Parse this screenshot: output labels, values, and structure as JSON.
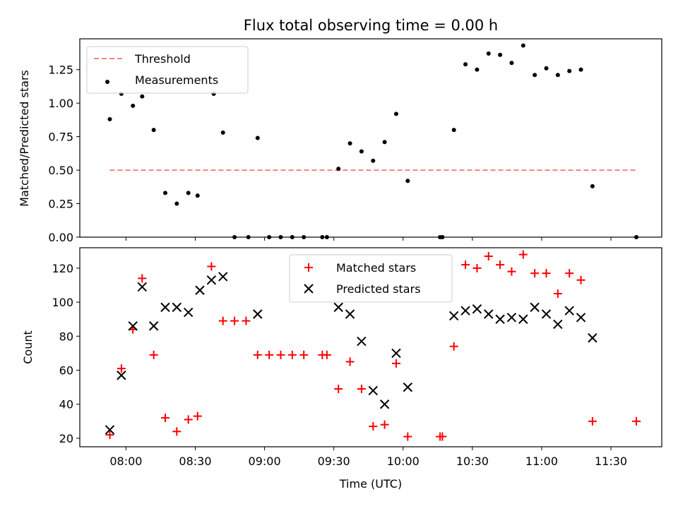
{
  "figure": {
    "title": "Flux total observing time = 0.00 h",
    "xlabel": "Time (UTC)",
    "x_tick_labels": [
      "08:00",
      "08:30",
      "09:00",
      "09:30",
      "10:00",
      "10:30",
      "11:00",
      "11:30"
    ]
  },
  "chart_data": [
    {
      "type": "scatter",
      "ylabel": "Matched/Predicted stars",
      "ylim": [
        0,
        1.48
      ],
      "xlim": [
        "07:40",
        "11:52"
      ],
      "y_ticks": [
        0.0,
        0.25,
        0.5,
        0.75,
        1.0,
        1.25
      ],
      "y_tick_labels": [
        "0.00",
        "0.25",
        "0.50",
        "0.75",
        "1.00",
        "1.25"
      ],
      "x_tick_labels_shown": false,
      "legend_position": "upper left",
      "colors": {
        "threshold": "#ff7f7f",
        "measurements": "#000000"
      },
      "threshold": {
        "name": "Threshold",
        "value": 0.5,
        "x_range": [
          "07:53",
          "11:41"
        ]
      },
      "measurements": {
        "name": "Measurements",
        "points": [
          [
            "07:53",
            0.88
          ],
          [
            "07:58",
            1.07
          ],
          [
            "08:03",
            0.98
          ],
          [
            "08:07",
            1.05
          ],
          [
            "08:12",
            0.8
          ],
          [
            "08:17",
            0.33
          ],
          [
            "08:22",
            0.25
          ],
          [
            "08:27",
            0.33
          ],
          [
            "08:31",
            0.31
          ],
          [
            "08:38",
            1.07
          ],
          [
            "08:42",
            0.78
          ],
          [
            "08:47",
            0.0
          ],
          [
            "08:53",
            0.0
          ],
          [
            "08:57",
            0.74
          ],
          [
            "09:02",
            0.0
          ],
          [
            "09:07",
            0.0
          ],
          [
            "09:12",
            0.0
          ],
          [
            "09:17",
            0.0
          ],
          [
            "09:25",
            0.0
          ],
          [
            "09:27",
            0.0
          ],
          [
            "09:32",
            0.51
          ],
          [
            "09:37",
            0.7
          ],
          [
            "09:42",
            0.64
          ],
          [
            "09:47",
            0.57
          ],
          [
            "09:52",
            0.71
          ],
          [
            "09:57",
            0.92
          ],
          [
            "10:02",
            0.42
          ],
          [
            "10:16",
            0.0
          ],
          [
            "10:17",
            0.0
          ],
          [
            "10:22",
            0.8
          ],
          [
            "10:27",
            1.29
          ],
          [
            "10:32",
            1.25
          ],
          [
            "10:37",
            1.37
          ],
          [
            "10:42",
            1.36
          ],
          [
            "10:47",
            1.3
          ],
          [
            "10:52",
            1.43
          ],
          [
            "10:57",
            1.21
          ],
          [
            "11:02",
            1.26
          ],
          [
            "11:07",
            1.21
          ],
          [
            "11:12",
            1.24
          ],
          [
            "11:17",
            1.25
          ],
          [
            "11:22",
            0.38
          ],
          [
            "11:41",
            0.0
          ]
        ]
      }
    },
    {
      "type": "scatter",
      "ylabel": "Count",
      "ylim": [
        15,
        132
      ],
      "xlim": [
        "07:40",
        "11:52"
      ],
      "y_ticks": [
        20,
        40,
        60,
        80,
        100,
        120
      ],
      "y_tick_labels": [
        "20",
        "40",
        "60",
        "80",
        "100",
        "120"
      ],
      "legend_position": "upper center",
      "colors": {
        "matched": "#ff0000",
        "predicted": "#000000"
      },
      "matched": {
        "name": "Matched stars",
        "marker": "+",
        "points": [
          [
            "07:53",
            22
          ],
          [
            "07:58",
            61
          ],
          [
            "08:03",
            84
          ],
          [
            "08:07",
            114
          ],
          [
            "08:12",
            69
          ],
          [
            "08:17",
            32
          ],
          [
            "08:22",
            24
          ],
          [
            "08:27",
            31
          ],
          [
            "08:31",
            33
          ],
          [
            "08:37",
            121
          ],
          [
            "08:42",
            89
          ],
          [
            "08:47",
            89
          ],
          [
            "08:52",
            89
          ],
          [
            "08:57",
            69
          ],
          [
            "09:02",
            69
          ],
          [
            "09:07",
            69
          ],
          [
            "09:12",
            69
          ],
          [
            "09:17",
            69
          ],
          [
            "09:25",
            69
          ],
          [
            "09:27",
            69
          ],
          [
            "09:32",
            49
          ],
          [
            "09:37",
            65
          ],
          [
            "09:42",
            49
          ],
          [
            "09:47",
            27
          ],
          [
            "09:52",
            28
          ],
          [
            "09:57",
            64
          ],
          [
            "10:02",
            21
          ],
          [
            "10:16",
            21
          ],
          [
            "10:17",
            21
          ],
          [
            "10:22",
            74
          ],
          [
            "10:27",
            122
          ],
          [
            "10:32",
            120
          ],
          [
            "10:37",
            127
          ],
          [
            "10:42",
            122
          ],
          [
            "10:47",
            118
          ],
          [
            "10:52",
            128
          ],
          [
            "10:57",
            117
          ],
          [
            "11:02",
            117
          ],
          [
            "11:07",
            105
          ],
          [
            "11:12",
            117
          ],
          [
            "11:17",
            113
          ],
          [
            "11:22",
            30
          ],
          [
            "11:41",
            30
          ]
        ]
      },
      "predicted": {
        "name": "Predicted stars",
        "marker": "x",
        "points": [
          [
            "07:53",
            25
          ],
          [
            "07:58",
            57
          ],
          [
            "08:03",
            86
          ],
          [
            "08:07",
            109
          ],
          [
            "08:12",
            86
          ],
          [
            "08:17",
            97
          ],
          [
            "08:22",
            97
          ],
          [
            "08:27",
            94
          ],
          [
            "08:32",
            107
          ],
          [
            "08:37",
            113
          ],
          [
            "08:42",
            115
          ],
          [
            "08:57",
            93
          ],
          [
            "09:32",
            97
          ],
          [
            "09:37",
            93
          ],
          [
            "09:42",
            77
          ],
          [
            "09:47",
            48
          ],
          [
            "09:52",
            40
          ],
          [
            "09:57",
            70
          ],
          [
            "10:02",
            50
          ],
          [
            "10:22",
            92
          ],
          [
            "10:27",
            95
          ],
          [
            "10:32",
            96
          ],
          [
            "10:37",
            93
          ],
          [
            "10:42",
            90
          ],
          [
            "10:47",
            91
          ],
          [
            "10:52",
            90
          ],
          [
            "10:57",
            97
          ],
          [
            "11:02",
            93
          ],
          [
            "11:07",
            87
          ],
          [
            "11:12",
            95
          ],
          [
            "11:17",
            91
          ],
          [
            "11:22",
            79
          ]
        ]
      }
    }
  ]
}
